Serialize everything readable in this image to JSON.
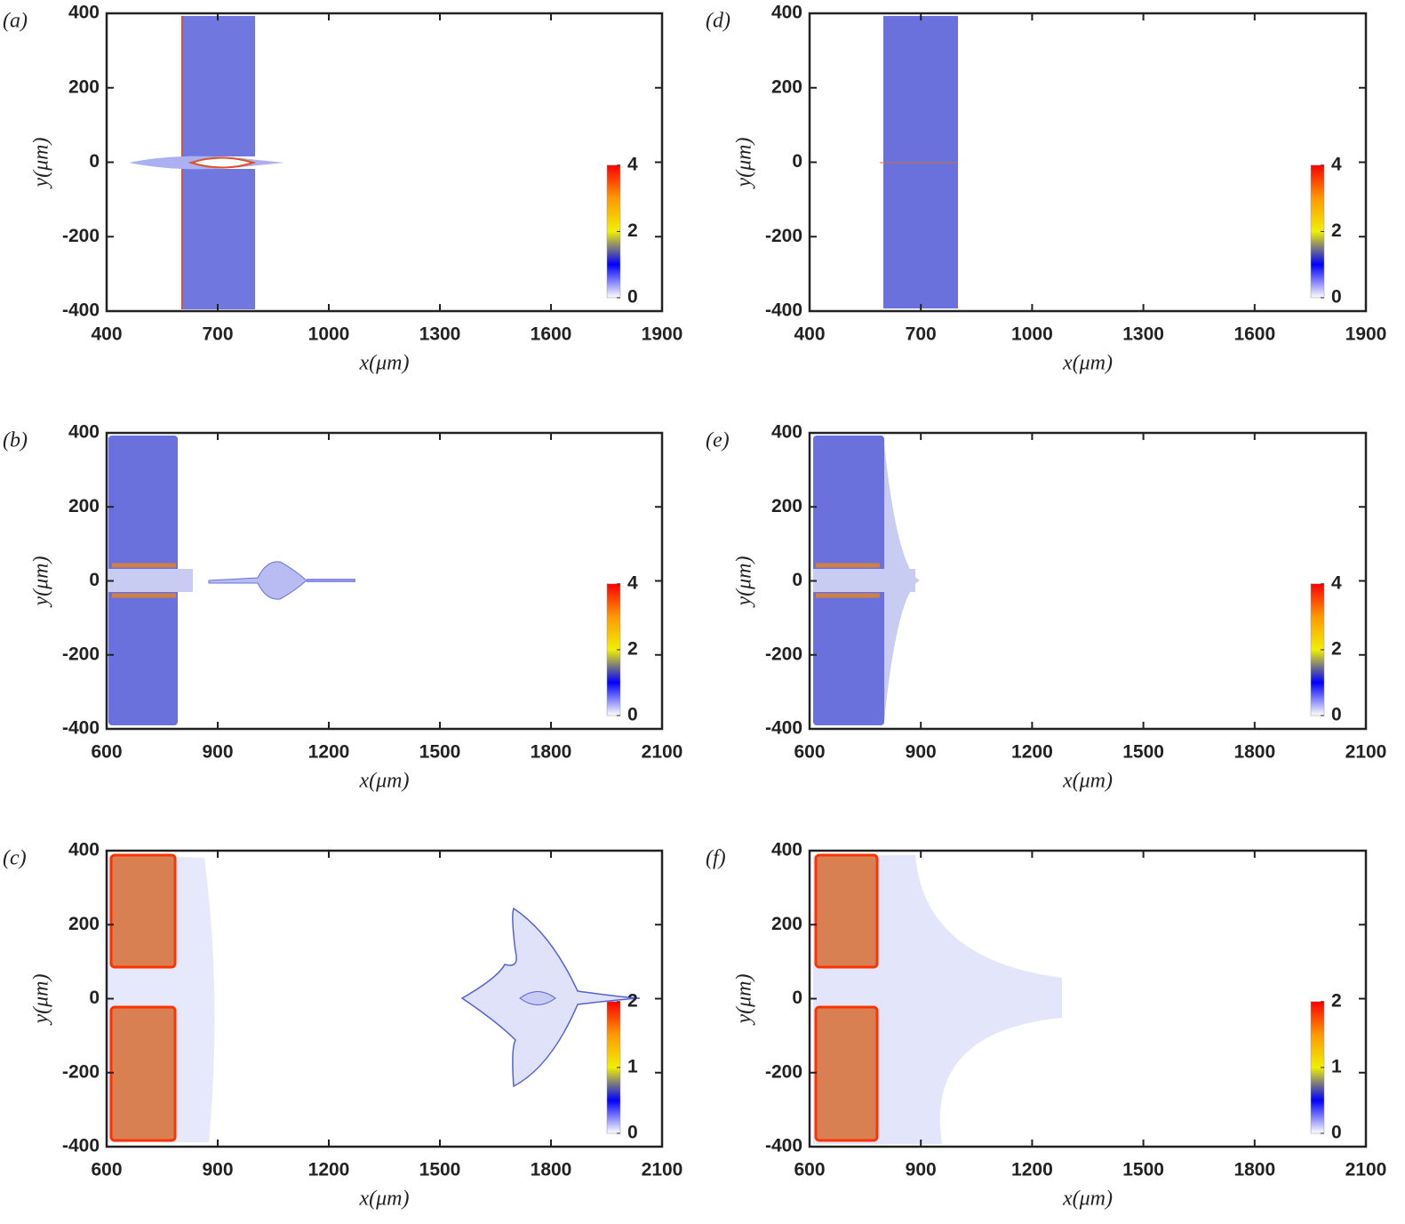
{
  "chart_data": [
    {
      "type": "image",
      "panel_label": "(a)",
      "xlabel": "x(μm)",
      "ylabel": "y(μm)",
      "xlim": [
        400,
        1900
      ],
      "xticks": [
        400,
        700,
        1000,
        1300,
        1600,
        1900
      ],
      "ylim": [
        -400,
        400
      ],
      "yticks": [
        -400,
        -200,
        0,
        200,
        400
      ],
      "clim": [
        0,
        4
      ],
      "cticks": [
        0,
        2,
        4
      ]
    },
    {
      "type": "image",
      "panel_label": "(b)",
      "xlabel": "x(μm)",
      "ylabel": "y(μm)",
      "xlim": [
        600,
        2100
      ],
      "xticks": [
        600,
        900,
        1200,
        1500,
        1800,
        2100
      ],
      "ylim": [
        -400,
        400
      ],
      "yticks": [
        -400,
        -200,
        0,
        200,
        400
      ],
      "clim": [
        0,
        4
      ],
      "cticks": [
        0,
        2,
        4
      ]
    },
    {
      "type": "image",
      "panel_label": "(c)",
      "xlabel": "x(μm)",
      "ylabel": "y(μm)",
      "xlim": [
        600,
        2100
      ],
      "xticks": [
        600,
        900,
        1200,
        1500,
        1800,
        2100
      ],
      "ylim": [
        -400,
        400
      ],
      "yticks": [
        -400,
        -200,
        0,
        200,
        400
      ],
      "clim": [
        0,
        2
      ],
      "cticks": [
        0,
        1,
        2
      ]
    },
    {
      "type": "image",
      "panel_label": "(d)",
      "xlabel": "x(μm)",
      "ylabel": "y(μm)",
      "xlim": [
        400,
        1900
      ],
      "xticks": [
        400,
        700,
        1000,
        1300,
        1600,
        1900
      ],
      "ylim": [
        -400,
        400
      ],
      "yticks": [
        -400,
        -200,
        0,
        200,
        400
      ],
      "clim": [
        0,
        4
      ],
      "cticks": [
        0,
        2,
        4
      ]
    },
    {
      "type": "image",
      "panel_label": "(e)",
      "xlabel": "x(μm)",
      "ylabel": "y(μm)",
      "xlim": [
        600,
        2100
      ],
      "xticks": [
        600,
        900,
        1200,
        1500,
        1800,
        2100
      ],
      "ylim": [
        -400,
        400
      ],
      "yticks": [
        -400,
        -200,
        0,
        200,
        400
      ],
      "clim": [
        0,
        4
      ],
      "cticks": [
        0,
        2,
        4
      ]
    },
    {
      "type": "image",
      "panel_label": "(f)",
      "xlabel": "x(μm)",
      "ylabel": "y(μm)",
      "xlim": [
        600,
        2100
      ],
      "xticks": [
        600,
        900,
        1200,
        1500,
        1800,
        2100
      ],
      "ylim": [
        -400,
        400
      ],
      "yticks": [
        -400,
        -200,
        0,
        200,
        400
      ],
      "clim": [
        0,
        2
      ],
      "cticks": [
        0,
        1,
        2
      ]
    }
  ]
}
